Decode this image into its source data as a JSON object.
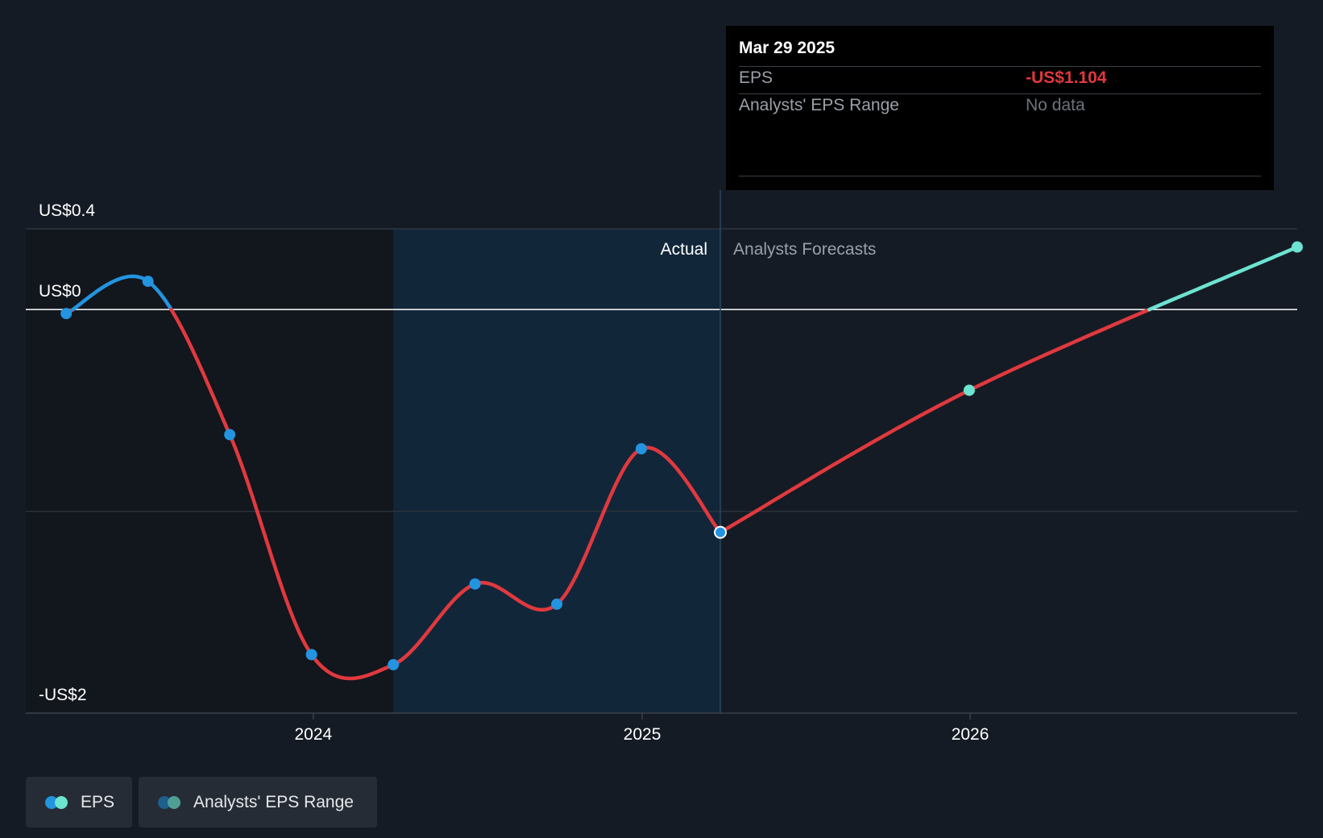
{
  "tooltip": {
    "date": "Mar 29 2025",
    "eps_label": "EPS",
    "eps_value": "-US$1.104",
    "range_label": "Analysts' EPS Range",
    "range_value": "No data"
  },
  "regions": {
    "actual_label": "Actual",
    "forecast_label": "Analysts Forecasts"
  },
  "legend": {
    "eps_label": "EPS",
    "range_label": "Analysts' EPS Range"
  },
  "colors": {
    "positive_eps": "#2394df",
    "negative_eps": "#e0393e",
    "forecast_positive": "#6de3d1",
    "forecast_point": "#6de3d1",
    "range_dot_a": "#1e5f8c",
    "range_dot_b": "#4f9e95",
    "shaded_region": "#12263a"
  },
  "chart_data": {
    "type": "line",
    "title": "",
    "xlabel": "",
    "ylabel": "",
    "y_tick_labels": [
      {
        "value": 0.4,
        "label": "US$0.4"
      },
      {
        "value": 0,
        "label": "US$0"
      },
      {
        "value": -2,
        "label": "-US$2"
      }
    ],
    "x_tick_labels": [
      {
        "value": "2024-01-01",
        "label": "2024"
      },
      {
        "value": "2025-01-01",
        "label": "2025"
      },
      {
        "value": "2026-01-01",
        "label": "2026"
      }
    ],
    "xlim": [
      "2023-02-15",
      "2026-12-31"
    ],
    "ylim": [
      -2,
      0.4
    ],
    "shaded_range": [
      "2024-03-30",
      "2025-03-29"
    ],
    "actual_end": "2025-03-29",
    "legend_position": "bottom-left",
    "series": [
      {
        "name": "EPS",
        "kind": "actual",
        "points": [
          {
            "x": "2023-04-01",
            "y": -0.02
          },
          {
            "x": "2023-07-01",
            "y": 0.14
          },
          {
            "x": "2023-09-30",
            "y": -0.62
          },
          {
            "x": "2023-12-30",
            "y": -1.71
          },
          {
            "x": "2024-03-30",
            "y": -1.76
          },
          {
            "x": "2024-06-29",
            "y": -1.36
          },
          {
            "x": "2024-09-28",
            "y": -1.46
          },
          {
            "x": "2024-12-31",
            "y": -0.69
          },
          {
            "x": "2025-03-29",
            "y": -1.104
          }
        ]
      },
      {
        "name": "EPS",
        "kind": "forecast",
        "points": [
          {
            "x": "2025-03-29",
            "y": -1.104
          },
          {
            "x": "2025-12-31",
            "y": -0.4
          },
          {
            "x": "2026-12-31",
            "y": 0.31
          }
        ]
      }
    ]
  }
}
